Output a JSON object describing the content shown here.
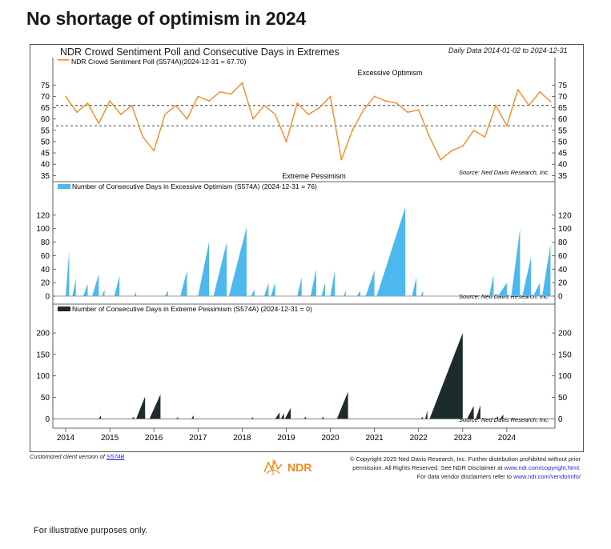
{
  "headline": "No shortage of optimism in 2024",
  "chart_title": "NDR Crowd Sentiment Poll and Consecutive Days in Extremes",
  "date_range": "Daily Data 2014-01-02 to 2024-12-31",
  "footer": {
    "client_version": "Customized client version of",
    "client_link": "S574B",
    "copyright_1": "© Copyright 2025 Ned Davis Research, Inc. Further distribution prohibited without prior",
    "copyright_2": "permission. All Rights Reserved. See NDR Disclaimer at",
    "copyright_link": "www.ndr.com/copyright.html.",
    "vendor_1": "For data vendor disclaimers refer to",
    "vendor_link": "www.ndr.com/vendorinfo/",
    "logo_text": "NDR",
    "illustrative": "For illustrative purposes only."
  },
  "chart_data": [
    {
      "type": "line",
      "legend": "NDR Crowd Sentiment Poll (S574A)(2024-12-31 = 67.70)",
      "color": "#f28c28",
      "ylim": [
        33,
        79
      ],
      "yticks": [
        35,
        40,
        45,
        50,
        55,
        60,
        65,
        70,
        75
      ],
      "reference_lines": [
        66,
        57
      ],
      "annotations": [
        "Excessive Optimism",
        "Extreme Pessimism"
      ],
      "source": "Source: Ned Davis Research, Inc.",
      "x": [
        2014.0,
        2014.25,
        2014.5,
        2014.75,
        2015.0,
        2015.25,
        2015.5,
        2015.75,
        2016.0,
        2016.25,
        2016.5,
        2016.75,
        2017.0,
        2017.25,
        2017.5,
        2017.75,
        2018.0,
        2018.25,
        2018.5,
        2018.75,
        2019.0,
        2019.25,
        2019.5,
        2019.75,
        2020.0,
        2020.25,
        2020.5,
        2020.75,
        2021.0,
        2021.25,
        2021.5,
        2021.75,
        2022.0,
        2022.25,
        2022.5,
        2022.75,
        2023.0,
        2023.25,
        2023.5,
        2023.75,
        2024.0,
        2024.25,
        2024.5,
        2024.75,
        2024.99
      ],
      "values": [
        70,
        63,
        67,
        58,
        68,
        62,
        66,
        52,
        46,
        62,
        66,
        60,
        70,
        68,
        72,
        71,
        76,
        60,
        66,
        62,
        50,
        67,
        62,
        65,
        70,
        42,
        55,
        64,
        70,
        68,
        67,
        63,
        64,
        52,
        42,
        46,
        48,
        55,
        52,
        66,
        57,
        73,
        66,
        72,
        67.7
      ]
    },
    {
      "type": "area",
      "legend": "Number of Consecutive Days in Excessive Optimism (S574A) (2024-12-31 = 76)",
      "color": "#4db8ee",
      "ylim": [
        0,
        140
      ],
      "yticks": [
        0,
        20,
        40,
        60,
        80,
        100,
        120
      ],
      "source": "Source: Ned Davis Research, Inc.",
      "episodes": [
        {
          "start": 2014.0,
          "end": 2014.08,
          "peak": 67
        },
        {
          "start": 2014.15,
          "end": 2014.23,
          "peak": 25
        },
        {
          "start": 2014.4,
          "end": 2014.5,
          "peak": 18
        },
        {
          "start": 2014.6,
          "end": 2014.75,
          "peak": 33
        },
        {
          "start": 2014.82,
          "end": 2014.88,
          "peak": 10
        },
        {
          "start": 2015.1,
          "end": 2015.22,
          "peak": 30
        },
        {
          "start": 2015.55,
          "end": 2015.6,
          "peak": 6
        },
        {
          "start": 2016.25,
          "end": 2016.32,
          "peak": 8
        },
        {
          "start": 2016.6,
          "end": 2016.75,
          "peak": 38
        },
        {
          "start": 2017.0,
          "end": 2017.25,
          "peak": 80
        },
        {
          "start": 2017.35,
          "end": 2017.65,
          "peak": 80
        },
        {
          "start": 2017.7,
          "end": 2018.1,
          "peak": 102
        },
        {
          "start": 2018.2,
          "end": 2018.28,
          "peak": 10
        },
        {
          "start": 2018.5,
          "end": 2018.6,
          "peak": 20
        },
        {
          "start": 2018.65,
          "end": 2018.75,
          "peak": 20
        },
        {
          "start": 2019.25,
          "end": 2019.35,
          "peak": 28
        },
        {
          "start": 2019.55,
          "end": 2019.68,
          "peak": 40
        },
        {
          "start": 2019.8,
          "end": 2019.88,
          "peak": 20
        },
        {
          "start": 2020.0,
          "end": 2020.1,
          "peak": 38
        },
        {
          "start": 2020.3,
          "end": 2020.35,
          "peak": 8
        },
        {
          "start": 2020.6,
          "end": 2020.68,
          "peak": 8
        },
        {
          "start": 2020.8,
          "end": 2021.0,
          "peak": 38
        },
        {
          "start": 2021.05,
          "end": 2021.7,
          "peak": 132
        },
        {
          "start": 2021.85,
          "end": 2021.95,
          "peak": 28
        },
        {
          "start": 2022.05,
          "end": 2022.1,
          "peak": 8
        },
        {
          "start": 2023.6,
          "end": 2023.7,
          "peak": 32
        },
        {
          "start": 2023.8,
          "end": 2024.0,
          "peak": 20
        },
        {
          "start": 2024.1,
          "end": 2024.3,
          "peak": 100
        },
        {
          "start": 2024.35,
          "end": 2024.55,
          "peak": 58
        },
        {
          "start": 2024.6,
          "end": 2024.75,
          "peak": 20
        },
        {
          "start": 2024.8,
          "end": 2024.99,
          "peak": 76
        }
      ]
    },
    {
      "type": "area",
      "legend": "Number of Consecutive Days in Extreme Pessimism (S574A) (2024-12-31 = 0)",
      "color": "#1c2b2b",
      "ylim": [
        -5,
        230
      ],
      "yticks": [
        0,
        50,
        100,
        150,
        200
      ],
      "source": "Source: Ned Davis Research, Inc.",
      "episodes": [
        {
          "start": 2014.75,
          "end": 2014.8,
          "peak": 8
        },
        {
          "start": 2015.5,
          "end": 2015.55,
          "peak": 5
        },
        {
          "start": 2015.6,
          "end": 2015.8,
          "peak": 52
        },
        {
          "start": 2015.9,
          "end": 2016.15,
          "peak": 57
        },
        {
          "start": 2016.5,
          "end": 2016.55,
          "peak": 4
        },
        {
          "start": 2016.85,
          "end": 2016.9,
          "peak": 8
        },
        {
          "start": 2018.2,
          "end": 2018.25,
          "peak": 4
        },
        {
          "start": 2018.75,
          "end": 2018.85,
          "peak": 15
        },
        {
          "start": 2018.88,
          "end": 2018.95,
          "peak": 13
        },
        {
          "start": 2018.97,
          "end": 2019.1,
          "peak": 25
        },
        {
          "start": 2019.4,
          "end": 2019.45,
          "peak": 5
        },
        {
          "start": 2019.8,
          "end": 2019.85,
          "peak": 5
        },
        {
          "start": 2020.15,
          "end": 2020.4,
          "peak": 63
        },
        {
          "start": 2022.05,
          "end": 2022.1,
          "peak": 5
        },
        {
          "start": 2022.15,
          "end": 2022.2,
          "peak": 20
        },
        {
          "start": 2022.25,
          "end": 2023.0,
          "peak": 200
        },
        {
          "start": 2023.1,
          "end": 2023.25,
          "peak": 30
        },
        {
          "start": 2023.3,
          "end": 2023.4,
          "peak": 32
        },
        {
          "start": 2023.75,
          "end": 2023.8,
          "peak": 6
        },
        {
          "start": 2023.85,
          "end": 2023.92,
          "peak": 10
        }
      ]
    }
  ],
  "x_ticks": [
    "2014",
    "2015",
    "2016",
    "2017",
    "2018",
    "2019",
    "2020",
    "2021",
    "2022",
    "2023",
    "2024"
  ]
}
